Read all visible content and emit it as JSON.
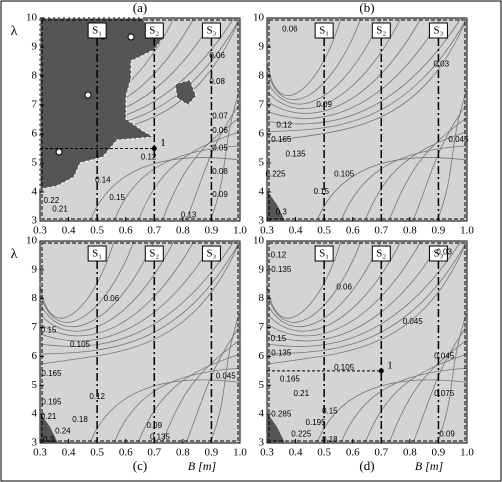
{
  "chart_data": [
    {
      "type": "contour",
      "title": "(a)",
      "ylabel": "λ",
      "xlim": [
        0.3,
        1.0
      ],
      "ylim": [
        3,
        10
      ],
      "xticks": [
        0.3,
        0.4,
        0.5,
        0.6,
        0.7,
        0.8,
        0.9,
        {
          "value": 1.0,
          "label": "1.0"
        }
      ],
      "yticks": [
        3,
        4,
        5,
        6,
        7,
        8,
        9,
        10
      ],
      "sections": [
        {
          "x": 0.5,
          "label": "S₁"
        },
        {
          "x": 0.7,
          "label": "S₂"
        },
        {
          "x": 0.9,
          "label": "S₃"
        }
      ],
      "point": {
        "x": 0.7,
        "y": 5.5,
        "label": "1"
      },
      "contour_labels": [
        {
          "x": 0.92,
          "y": 8.7,
          "value": 0.06
        },
        {
          "x": 0.92,
          "y": 7.8,
          "value": 0.08
        },
        {
          "x": 0.93,
          "y": 6.6,
          "value": 0.07
        },
        {
          "x": 0.93,
          "y": 6.1,
          "value": 0.06
        },
        {
          "x": 0.68,
          "y": 5.2,
          "value": 0.12
        },
        {
          "x": 0.93,
          "y": 5.5,
          "value": 0.05
        },
        {
          "x": 0.93,
          "y": 4.7,
          "value": 0.08
        },
        {
          "x": 0.93,
          "y": 3.9,
          "value": 0.09
        },
        {
          "x": 0.52,
          "y": 4.4,
          "value": 0.14
        },
        {
          "x": 0.57,
          "y": 3.8,
          "value": 0.15
        },
        {
          "x": 0.34,
          "y": 3.7,
          "value": 0.22
        },
        {
          "x": 0.37,
          "y": 3.4,
          "value": 0.21
        },
        {
          "x": 0.82,
          "y": 3.2,
          "value": 0.13
        }
      ]
    },
    {
      "type": "contour",
      "title": "(b)",
      "xlim": [
        0.3,
        1.0
      ],
      "ylim": [
        3,
        10
      ],
      "xticks": [
        0.3,
        0.4,
        0.5,
        0.6,
        0.7,
        0.8,
        0.9,
        {
          "value": 1.0,
          "label": "1.0"
        }
      ],
      "yticks": [
        3,
        4,
        5,
        6,
        7,
        8,
        9,
        10
      ],
      "sections": [
        {
          "x": 0.5,
          "label": "S₁"
        },
        {
          "x": 0.7,
          "label": "S₂"
        },
        {
          "x": 0.9,
          "label": "S₃"
        }
      ],
      "contour_labels": [
        {
          "x": 0.38,
          "y": 9.6,
          "value": 0.06
        },
        {
          "x": 0.91,
          "y": 8.4,
          "value": 0.03
        },
        {
          "x": 0.5,
          "y": 7.0,
          "value": 0.09
        },
        {
          "x": 0.36,
          "y": 6.3,
          "value": 0.12
        },
        {
          "x": 0.35,
          "y": 5.8,
          "value": 0.165
        },
        {
          "x": 0.4,
          "y": 5.3,
          "value": 0.135
        },
        {
          "x": 0.57,
          "y": 4.6,
          "value": 0.105
        },
        {
          "x": 0.97,
          "y": 5.8,
          "value": 0.045
        },
        {
          "x": 0.49,
          "y": 4.0,
          "value": 0.15
        },
        {
          "x": 0.33,
          "y": 4.6,
          "value": 0.225
        },
        {
          "x": 0.35,
          "y": 3.3,
          "value": 0.3
        }
      ]
    },
    {
      "type": "contour",
      "title": "(c)",
      "ylabel": "λ",
      "xlabel": "B [m]",
      "xlim": [
        0.3,
        1.0
      ],
      "ylim": [
        3,
        10
      ],
      "xticks": [
        0.3,
        0.4,
        0.5,
        0.6,
        0.7,
        0.8,
        0.9,
        {
          "value": 1.0,
          "label": "1.0"
        }
      ],
      "yticks": [
        3,
        4,
        5,
        6,
        7,
        8,
        9,
        10
      ],
      "sections": [
        {
          "x": 0.5,
          "label": "S₁"
        },
        {
          "x": 0.7,
          "label": "S₂"
        },
        {
          "x": 0.9,
          "label": "S₃"
        }
      ],
      "contour_labels": [
        {
          "x": 0.55,
          "y": 8.0,
          "value": 0.06
        },
        {
          "x": 0.33,
          "y": 6.9,
          "value": 0.15
        },
        {
          "x": 0.44,
          "y": 6.4,
          "value": 0.105
        },
        {
          "x": 0.34,
          "y": 5.4,
          "value": 0.165
        },
        {
          "x": 0.95,
          "y": 5.3,
          "value": 0.045
        },
        {
          "x": 0.5,
          "y": 4.6,
          "value": 0.12
        },
        {
          "x": 0.7,
          "y": 3.6,
          "value": 0.09
        },
        {
          "x": 0.34,
          "y": 4.4,
          "value": 0.195
        },
        {
          "x": 0.44,
          "y": 3.8,
          "value": 0.18
        },
        {
          "x": 0.72,
          "y": 3.2,
          "value": 0.135
        },
        {
          "x": 0.33,
          "y": 3.9,
          "value": 0.21
        },
        {
          "x": 0.38,
          "y": 3.4,
          "value": 0.24
        },
        {
          "x": 0.33,
          "y": 3.1,
          "value": 0.3
        }
      ]
    },
    {
      "type": "contour",
      "title": "(d)",
      "xlabel": "B [m]",
      "xlim": [
        0.3,
        1.0
      ],
      "ylim": [
        3,
        10
      ],
      "xticks": [
        0.3,
        0.4,
        0.5,
        0.6,
        0.7,
        0.8,
        0.9,
        {
          "value": 1.0,
          "label": "1.0"
        }
      ],
      "yticks": [
        3,
        4,
        5,
        6,
        7,
        8,
        9,
        10
      ],
      "sections": [
        {
          "x": 0.5,
          "label": "S₁"
        },
        {
          "x": 0.7,
          "label": "S₂"
        },
        {
          "x": 0.9,
          "label": "S₃"
        }
      ],
      "point": {
        "x": 0.7,
        "y": 5.5,
        "label": "1"
      },
      "contour_labels": [
        {
          "x": 0.34,
          "y": 9.5,
          "value": 0.12
        },
        {
          "x": 0.35,
          "y": 9.0,
          "value": 0.135
        },
        {
          "x": 0.57,
          "y": 8.4,
          "value": 0.06
        },
        {
          "x": 0.92,
          "y": 9.6,
          "value": 0.03
        },
        {
          "x": 0.81,
          "y": 7.2,
          "value": 0.045
        },
        {
          "x": 0.34,
          "y": 6.6,
          "value": 0.15
        },
        {
          "x": 0.35,
          "y": 6.1,
          "value": 0.135
        },
        {
          "x": 0.57,
          "y": 5.6,
          "value": 0.105
        },
        {
          "x": 0.92,
          "y": 6.0,
          "value": 0.045
        },
        {
          "x": 0.38,
          "y": 5.2,
          "value": 0.165
        },
        {
          "x": 0.42,
          "y": 4.7,
          "value": 0.21
        },
        {
          "x": 0.92,
          "y": 4.7,
          "value": 0.075
        },
        {
          "x": 0.52,
          "y": 4.1,
          "value": 0.15
        },
        {
          "x": 0.47,
          "y": 3.7,
          "value": 0.195
        },
        {
          "x": 0.35,
          "y": 4.0,
          "value": 0.285
        },
        {
          "x": 0.42,
          "y": 3.3,
          "value": 0.225
        },
        {
          "x": 0.52,
          "y": 3.1,
          "value": 0.18
        },
        {
          "x": 0.93,
          "y": 3.3,
          "value": 0.09
        }
      ]
    }
  ]
}
